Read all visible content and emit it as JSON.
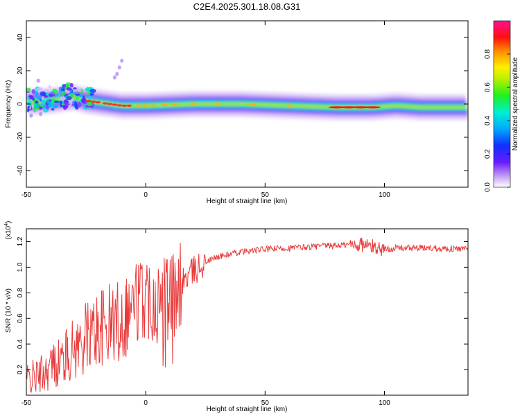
{
  "title": "C2E4.2025.301.18.08.G31",
  "chart_data": [
    {
      "type": "heatmap",
      "xlabel": "Height of straight line (km)",
      "ylabel": "Frequency (Hz)",
      "xlim": [
        -50,
        135
      ],
      "ylim": [
        -50,
        50
      ],
      "xticks": [
        "-50",
        "0",
        "50",
        "100"
      ],
      "yticks": [
        "-40",
        "-20",
        "0",
        "20",
        "40"
      ],
      "colorbar": {
        "label": "Normalized spectral amplitude",
        "range": [
          0,
          1
        ],
        "ticks": [
          "0.0",
          "0.2",
          "0.4",
          "0.6",
          "0.8"
        ],
        "colormap": "rainbow (white-violet-blue-cyan-green-yellow-red-magenta)"
      },
      "ridge": {
        "x": [
          -50,
          -40,
          -30,
          -25,
          -20,
          -15,
          -10,
          0,
          20,
          40,
          60,
          80,
          95,
          105,
          115,
          135
        ],
        "freq": [
          1,
          2,
          4,
          2,
          1,
          0,
          -1,
          -1,
          0,
          0,
          -1,
          -2,
          -2,
          -1,
          -2,
          -2
        ]
      },
      "grid": false
    },
    {
      "type": "line",
      "xlabel": "Height of straight line (km)",
      "ylabel": "SNR (10 * v/v)",
      "yscale_label": "(x10",
      "yscale_exp": "4",
      "yscale_close": ")",
      "xlim": [
        -50,
        135
      ],
      "ylim": [
        0,
        1.3
      ],
      "xticks": [
        "-50",
        "0",
        "50",
        "100"
      ],
      "yticks": [
        "0.2",
        "0.4",
        "0.6",
        "0.8",
        "1.0",
        "1.2"
      ],
      "line_color": "#e83a3a",
      "series": [
        {
          "name": "",
          "x": [
            -50,
            -45,
            -40,
            -35,
            -30,
            -25,
            -20,
            -15,
            -10,
            -5,
            0,
            5,
            10,
            15,
            20,
            25,
            30,
            40,
            50,
            60,
            70,
            80,
            90,
            95,
            100,
            105,
            110,
            120,
            135
          ],
          "y": [
            0.12,
            0.15,
            0.22,
            0.28,
            0.36,
            0.45,
            0.52,
            0.55,
            0.6,
            0.72,
            0.78,
            0.75,
            0.7,
            0.88,
            0.97,
            1.04,
            1.08,
            1.12,
            1.14,
            1.15,
            1.16,
            1.17,
            1.18,
            1.16,
            1.14,
            1.15,
            1.15,
            1.15,
            1.14
          ]
        }
      ],
      "grid": false
    }
  ]
}
